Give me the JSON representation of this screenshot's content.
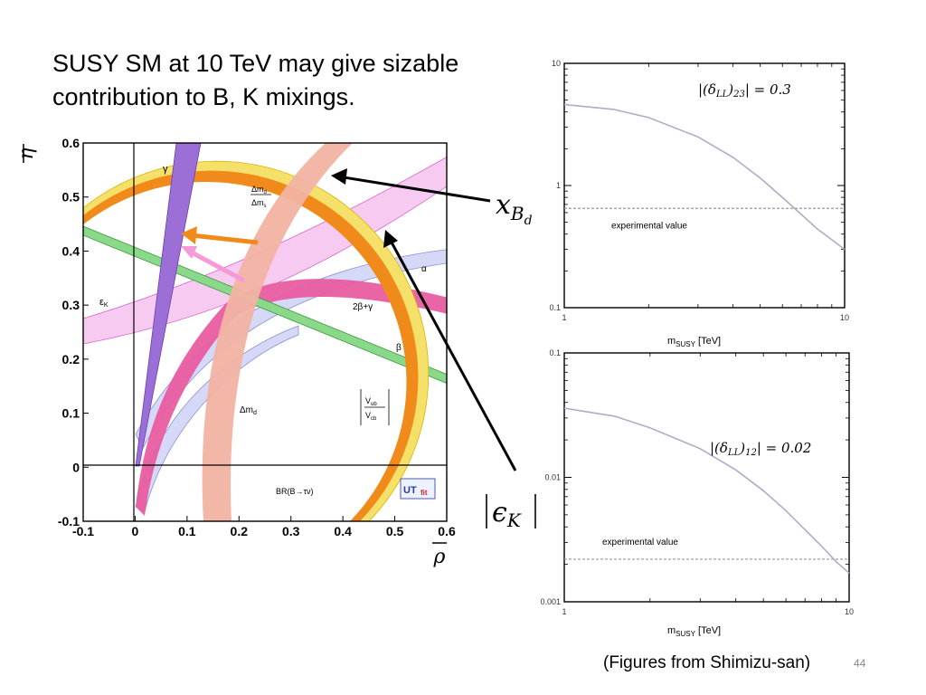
{
  "slide": {
    "title": "SUSY SM at 10 TeV may give sizable\ncontribution to B, K mixings.",
    "footer": "(Figures from Shimizu-san)",
    "page_number": "44",
    "callouts": {
      "x_Bd": "x",
      "x_Bd_sub": "B",
      "x_Bd_subsub": "d",
      "eps_K": "ϵ",
      "eps_K_sub": "K"
    }
  },
  "chart_data": [
    {
      "type": "diagram",
      "xlabel": "ρ",
      "ylabel": "η",
      "xlim": [
        -0.1,
        0.6
      ],
      "ylim": [
        -0.1,
        0.6
      ],
      "xticks": [
        "-0.1",
        "0",
        "0.1",
        "0.2",
        "0.3",
        "0.4",
        "0.5",
        "0.6"
      ],
      "yticks": [
        "-0.1",
        "0",
        "0.1",
        "0.2",
        "0.3",
        "0.4",
        "0.5",
        "0.6"
      ],
      "annotations": {
        "gamma": "γ",
        "dms_num": "Δm",
        "dms_num_sub": "d",
        "dms_den": "Δm",
        "dms_den_sub": "s",
        "epsK": "ε",
        "epsK_sub": "K",
        "alpha": "α",
        "twobg": "2β+γ",
        "beta": "β",
        "dmd": "Δm",
        "dmd_sub": "d",
        "vub": "V",
        "vub_sub": "ub",
        "vcb": "V",
        "vcb_sub": "cb",
        "br": "BR(B→τν)",
        "logo_ut": "UT",
        "logo_fit": "fit"
      },
      "colors": {
        "gamma": "#9b6fd6",
        "dms": "#f2b3a3",
        "epsK": "#f5c2ef",
        "alpha": "#aab0e8",
        "beta": "#66cc66",
        "twobg": "#e8508f",
        "vub_outer": "#f5e06a",
        "vub_inner": "#f08a1a"
      }
    },
    {
      "type": "line",
      "title": "|(δLL)23| = 0.3",
      "xlabel_main": "m",
      "xlabel_sub": "SUSY",
      "xlabel_unit": " [TeV]",
      "xscale": "log",
      "yscale": "log",
      "xlim": [
        1,
        10
      ],
      "ylim": [
        0.1,
        10
      ],
      "xticks": [
        "1",
        "10"
      ],
      "yticks": [
        "0.1",
        "1",
        "10"
      ],
      "series": [
        {
          "x": [
            1,
            1.5,
            2,
            3,
            4,
            5,
            6,
            7,
            8,
            9,
            10
          ],
          "y": [
            4.6,
            4.2,
            3.6,
            2.5,
            1.7,
            1.15,
            0.8,
            0.58,
            0.44,
            0.36,
            0.3
          ]
        }
      ],
      "reference_line": {
        "y": 0.65,
        "label": "experimental value"
      }
    },
    {
      "type": "line",
      "title": "|(δLL)12| = 0.02",
      "xlabel_main": "m",
      "xlabel_sub": "SUSY",
      "xlabel_unit": " [TeV]",
      "xscale": "log",
      "yscale": "log",
      "xlim": [
        1,
        10
      ],
      "ylim": [
        0.001,
        0.1
      ],
      "xticks": [
        "1",
        "10"
      ],
      "yticks": [
        "0.001",
        "0.01",
        "0.1"
      ],
      "series": [
        {
          "x": [
            1,
            1.5,
            2,
            3,
            4,
            5,
            6,
            7,
            8,
            9,
            10
          ],
          "y": [
            0.036,
            0.031,
            0.025,
            0.017,
            0.0115,
            0.0078,
            0.0054,
            0.0038,
            0.0028,
            0.0021,
            0.0017
          ]
        }
      ],
      "reference_line": {
        "y": 0.0022,
        "label": "experimental value"
      }
    }
  ]
}
